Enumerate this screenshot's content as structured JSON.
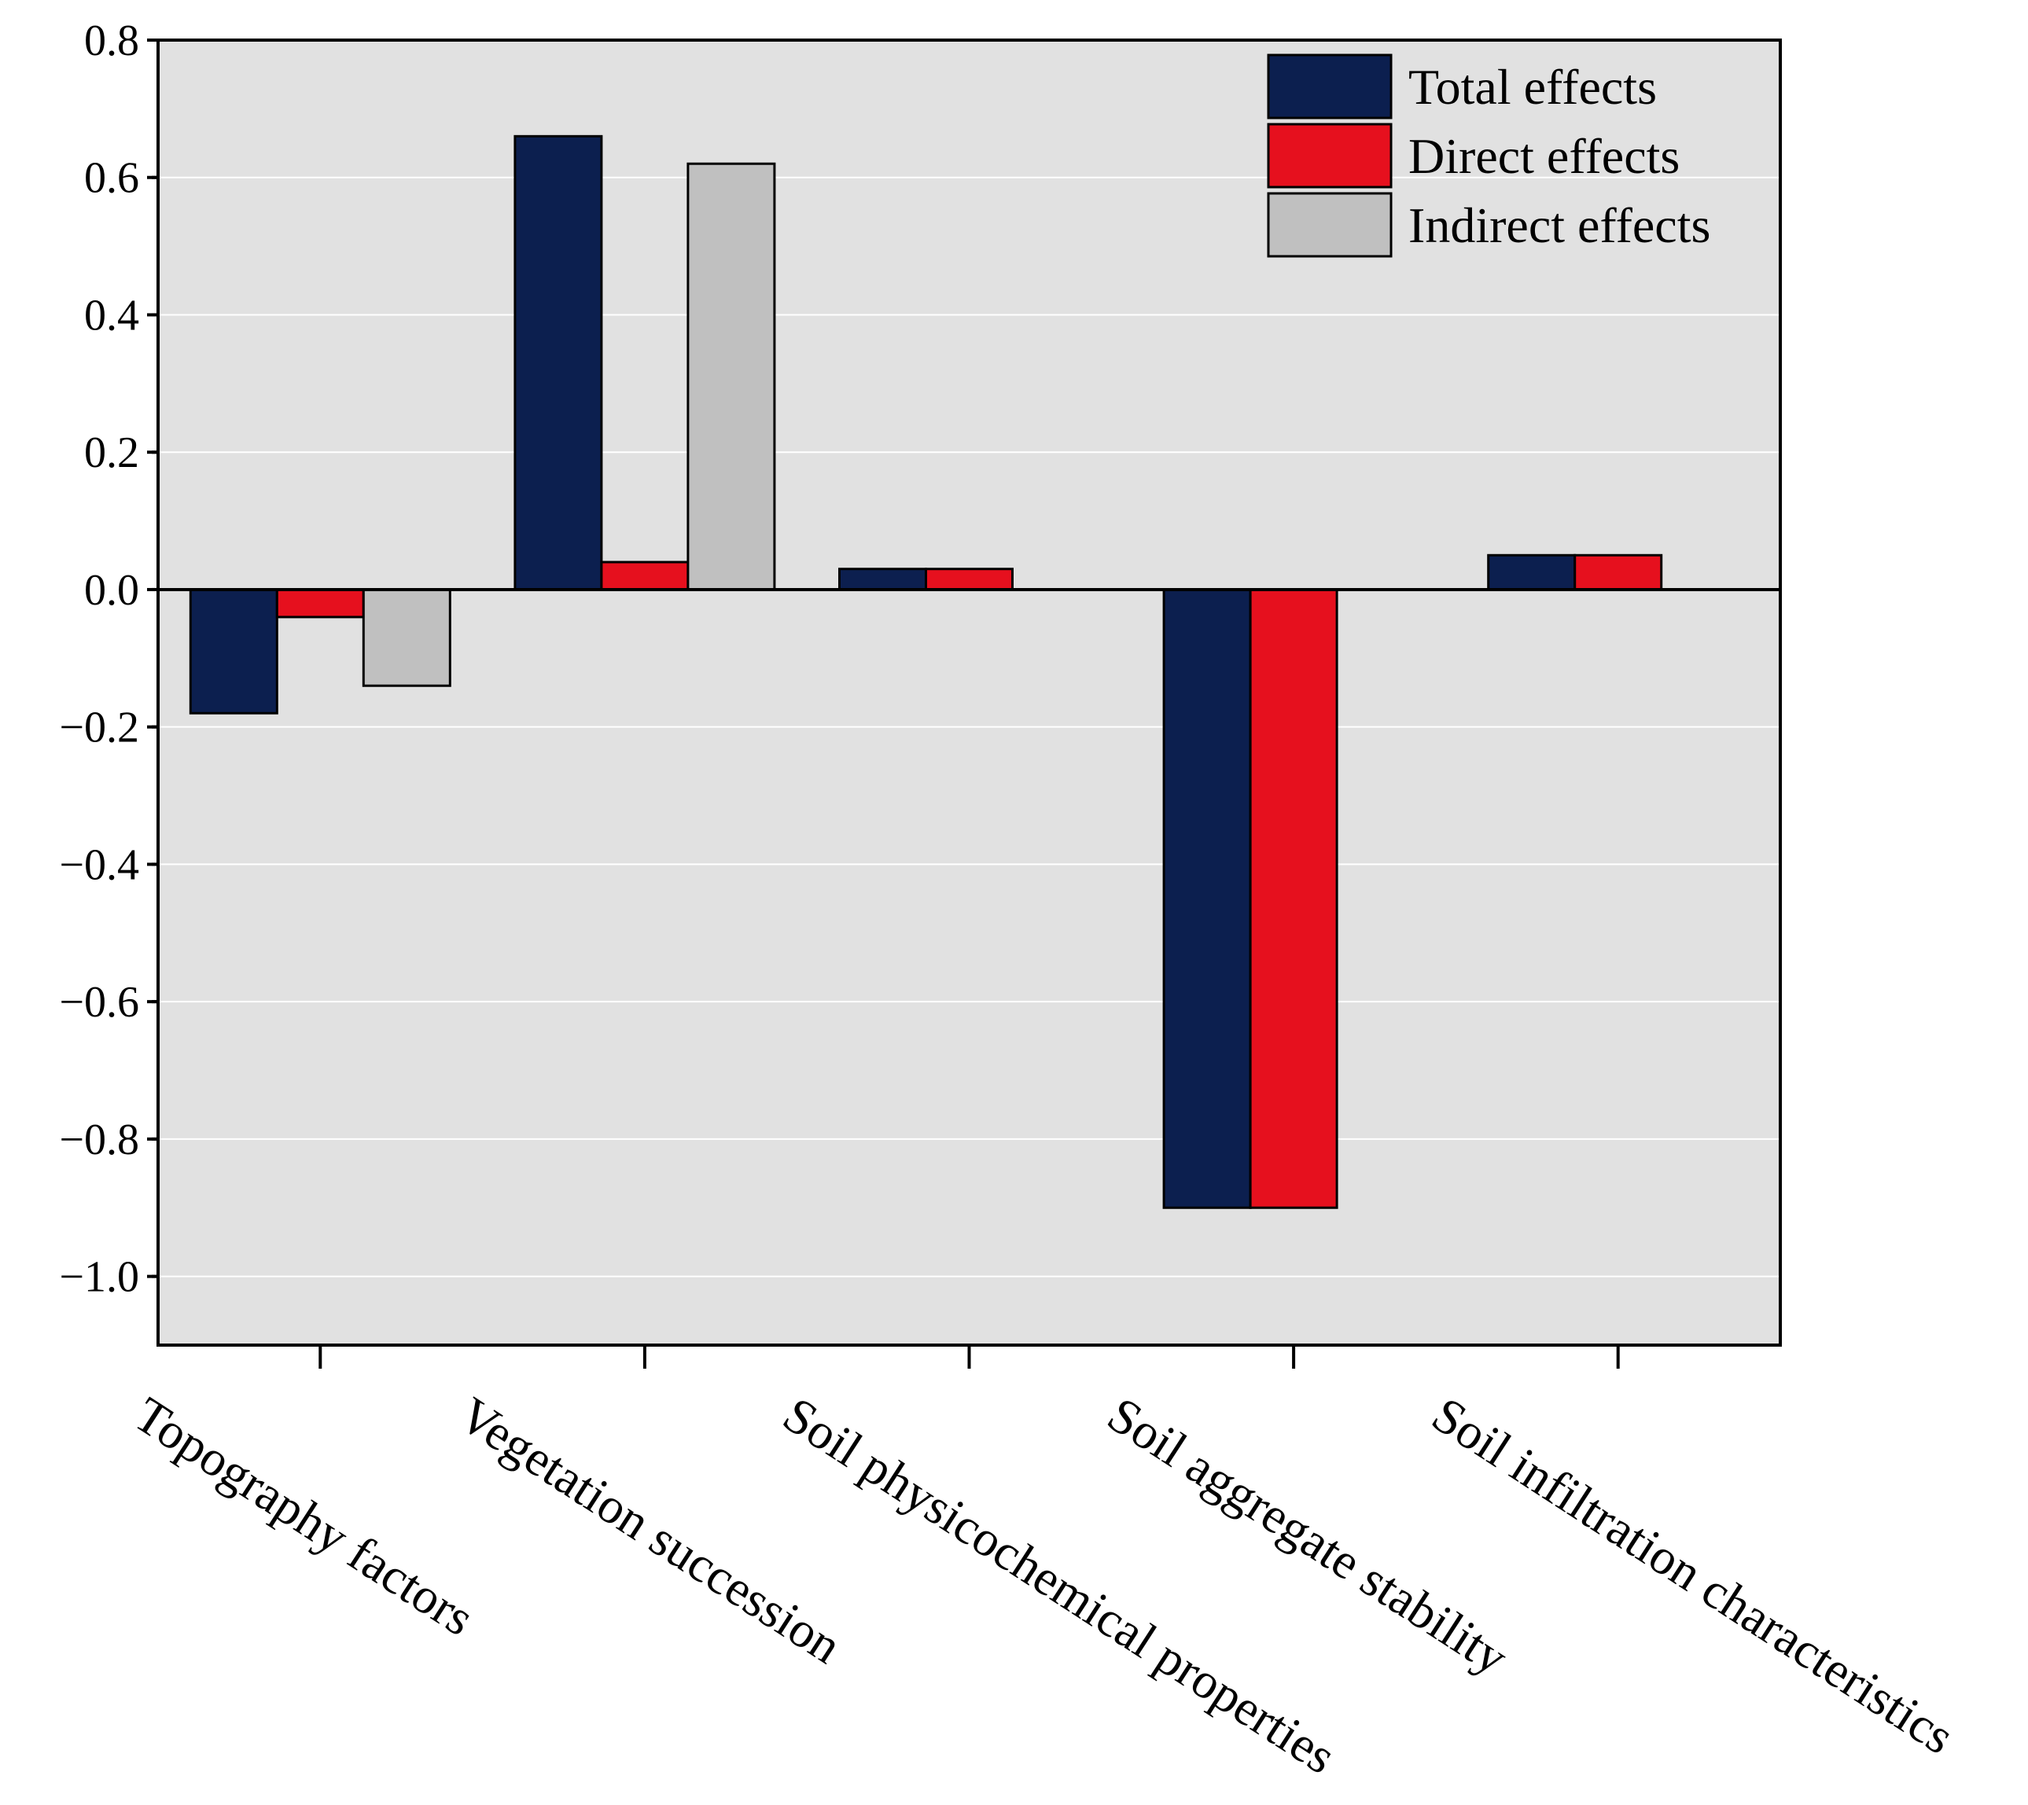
{
  "chart_data": {
    "type": "bar",
    "title": "",
    "xlabel": "",
    "ylabel": "",
    "categories": [
      "Topography factors",
      "Vegetation succession",
      "Soil physicochemical properties",
      "Soil aggregate stability",
      "Soil infiltration characteristics"
    ],
    "series": [
      {
        "name": "Total effects",
        "color": "#0c1f4f",
        "values": [
          -0.18,
          0.66,
          0.03,
          -0.9,
          0.05
        ]
      },
      {
        "name": "Direct effects",
        "color": "#e6101e",
        "values": [
          -0.04,
          0.04,
          0.03,
          -0.9,
          0.05
        ]
      },
      {
        "name": "Indirect effects",
        "color": "#c0c0c0",
        "values": [
          -0.14,
          0.62,
          null,
          null,
          null
        ]
      }
    ],
    "ylim": [
      -1.1,
      0.8
    ],
    "yticks": [
      "0.8",
      "0.6",
      "0.4",
      "0.2",
      "0.0",
      "−0.2",
      "−0.4",
      "−0.6",
      "−0.8",
      "−1.0"
    ],
    "grid": true,
    "legend": "top-right",
    "plot_background": "#e1e1e1"
  }
}
